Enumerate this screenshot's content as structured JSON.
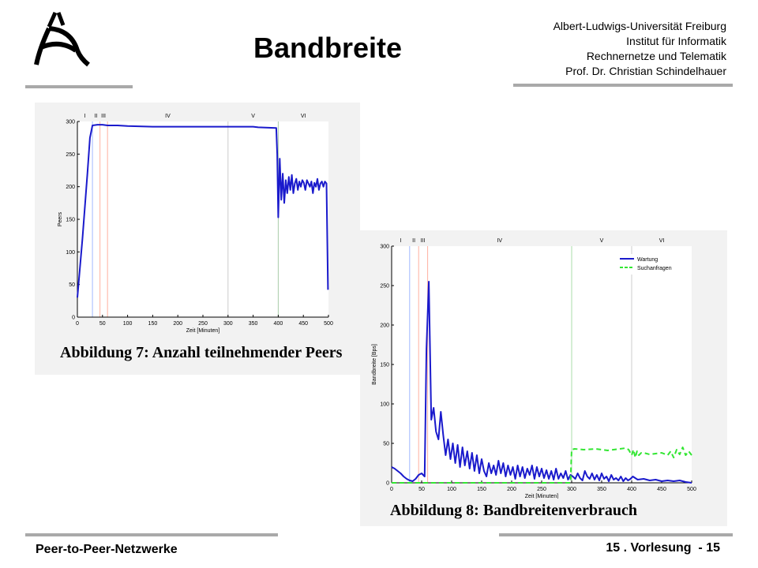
{
  "header": {
    "title": "Bandbreite",
    "institution_lines": [
      "Albert-Ludwigs-Universität Freiburg",
      "Institut für Informatik",
      "Rechnernetze und Telematik",
      "Prof. Dr. Christian Schindelhauer"
    ],
    "logo_icon": "university-logo-icon"
  },
  "footer": {
    "course": "Peer-to-Peer-Netzwerke",
    "lecture": "15 . Vorlesung  - 15"
  },
  "colors": {
    "rule": "#a9a9a9",
    "series_blue": "#1a1acc",
    "series_green": "#33e633"
  },
  "chart_data": [
    {
      "type": "line",
      "caption": "Abbildung 7: Anzahl teilnehmender Peers",
      "xlabel": "Zeit [Minuten]",
      "ylabel": "Peers",
      "xlim": [
        0,
        500
      ],
      "ylim": [
        0,
        300
      ],
      "xticks": [
        0,
        50,
        100,
        150,
        200,
        250,
        300,
        350,
        400,
        450,
        500
      ],
      "yticks": [
        0,
        50,
        100,
        150,
        200,
        250,
        300
      ],
      "phase_labels": [
        "I",
        "II",
        "III",
        "IV",
        "V",
        "VI"
      ],
      "phase_label_positions": [
        15,
        37,
        52,
        180,
        350,
        450
      ],
      "phase_lines": [
        {
          "x": 30,
          "color": "#a0b8ff"
        },
        {
          "x": 45,
          "color": "#ffb0a0"
        },
        {
          "x": 60,
          "color": "#ffb0a0"
        },
        {
          "x": 300,
          "color": "#cccccc"
        },
        {
          "x": 400,
          "color": "#aaccaa"
        }
      ],
      "series": [
        {
          "color": "#1a1acc",
          "dash": false,
          "x": [
            0,
            10,
            20,
            25,
            30,
            40,
            50,
            60,
            80,
            100,
            150,
            200,
            250,
            300,
            350,
            360,
            396,
            398,
            400,
            403,
            406,
            409,
            412,
            415,
            418,
            421,
            424,
            427,
            430,
            433,
            436,
            439,
            442,
            445,
            448,
            451,
            454,
            457,
            460,
            463,
            466,
            469,
            472,
            475,
            478,
            481,
            484,
            487,
            490,
            493,
            496,
            499
          ],
          "y": [
            30,
            120,
            220,
            275,
            294,
            295,
            295,
            294,
            294,
            293,
            292,
            292,
            292,
            292,
            292,
            291,
            290,
            250,
            153,
            243,
            180,
            220,
            175,
            210,
            190,
            215,
            195,
            218,
            190,
            205,
            212,
            195,
            208,
            200,
            210,
            206,
            195,
            210,
            205,
            200,
            208,
            190,
            206,
            200,
            212,
            195,
            205,
            208,
            200,
            208,
            205,
            42
          ]
        }
      ]
    },
    {
      "type": "line",
      "caption": "Abbildung 8: Bandbreitenverbrauch",
      "xlabel": "Zeit [Minuten]",
      "ylabel": "Bandbreite [Bps]",
      "xlim": [
        0,
        500
      ],
      "ylim": [
        0,
        300
      ],
      "xticks": [
        0,
        50,
        100,
        150,
        200,
        250,
        300,
        350,
        400,
        450,
        500
      ],
      "yticks": [
        0,
        50,
        100,
        150,
        200,
        250,
        300
      ],
      "phase_labels": [
        "I",
        "II",
        "III",
        "IV",
        "V",
        "VI"
      ],
      "phase_label_positions": [
        15,
        37,
        52,
        180,
        350,
        450
      ],
      "phase_lines": [
        {
          "x": 30,
          "color": "#a0b8ff"
        },
        {
          "x": 45,
          "color": "#ffb0a0"
        },
        {
          "x": 60,
          "color": "#ffb0a0"
        },
        {
          "x": 300,
          "color": "#aaddaa"
        },
        {
          "x": 400,
          "color": "#cccccc"
        }
      ],
      "legend": {
        "placement": "top-right",
        "entries": [
          "Wartung",
          "Suchanfragen"
        ]
      },
      "series": [
        {
          "name": "Wartung",
          "color": "#1a1acc",
          "dash": false,
          "x": [
            0,
            5,
            10,
            15,
            20,
            25,
            30,
            35,
            40,
            45,
            50,
            55,
            58,
            62,
            66,
            70,
            74,
            78,
            82,
            86,
            90,
            94,
            98,
            102,
            106,
            110,
            114,
            118,
            122,
            126,
            130,
            134,
            138,
            142,
            146,
            150,
            154,
            158,
            162,
            166,
            170,
            174,
            178,
            182,
            186,
            190,
            194,
            198,
            202,
            206,
            210,
            214,
            218,
            222,
            226,
            230,
            234,
            238,
            242,
            246,
            250,
            254,
            258,
            262,
            266,
            270,
            274,
            278,
            282,
            286,
            290,
            294,
            298,
            302,
            306,
            310,
            314,
            318,
            322,
            326,
            330,
            334,
            338,
            342,
            346,
            350,
            354,
            358,
            362,
            366,
            370,
            374,
            378,
            382,
            386,
            390,
            394,
            398,
            402,
            410,
            420,
            430,
            440,
            450,
            460,
            470,
            480,
            490,
            500
          ],
          "y": [
            20,
            18,
            15,
            12,
            8,
            5,
            3,
            2,
            5,
            10,
            12,
            8,
            170,
            255,
            80,
            95,
            65,
            55,
            90,
            60,
            35,
            55,
            30,
            50,
            25,
            48,
            20,
            45,
            22,
            40,
            18,
            38,
            15,
            35,
            12,
            30,
            15,
            8,
            25,
            12,
            22,
            10,
            28,
            12,
            25,
            8,
            22,
            10,
            20,
            5,
            22,
            8,
            20,
            6,
            18,
            10,
            22,
            5,
            20,
            8,
            18,
            6,
            16,
            5,
            15,
            4,
            18,
            5,
            12,
            6,
            15,
            4,
            10,
            8,
            5,
            12,
            6,
            3,
            15,
            8,
            5,
            12,
            4,
            10,
            3,
            12,
            5,
            8,
            2,
            10,
            4,
            6,
            3,
            8,
            2,
            6,
            3,
            5,
            8,
            4,
            5,
            3,
            4,
            2,
            3,
            2,
            3,
            1,
            0
          ]
        },
        {
          "name": "Suchanfragen",
          "color": "#33e633",
          "dash": true,
          "x": [
            0,
            100,
            200,
            290,
            298,
            300,
            305,
            320,
            340,
            360,
            380,
            390,
            395,
            400,
            403,
            406,
            409,
            412,
            416,
            420,
            430,
            440,
            450,
            460,
            465,
            470,
            475,
            480,
            485,
            490,
            495,
            500
          ],
          "y": [
            0,
            0,
            0,
            0,
            0,
            42,
            43,
            42,
            43,
            41,
            43,
            44,
            42,
            35,
            42,
            32,
            40,
            35,
            38,
            38,
            36,
            37,
            38,
            35,
            40,
            32,
            42,
            36,
            45,
            35,
            40,
            35
          ]
        }
      ]
    }
  ]
}
